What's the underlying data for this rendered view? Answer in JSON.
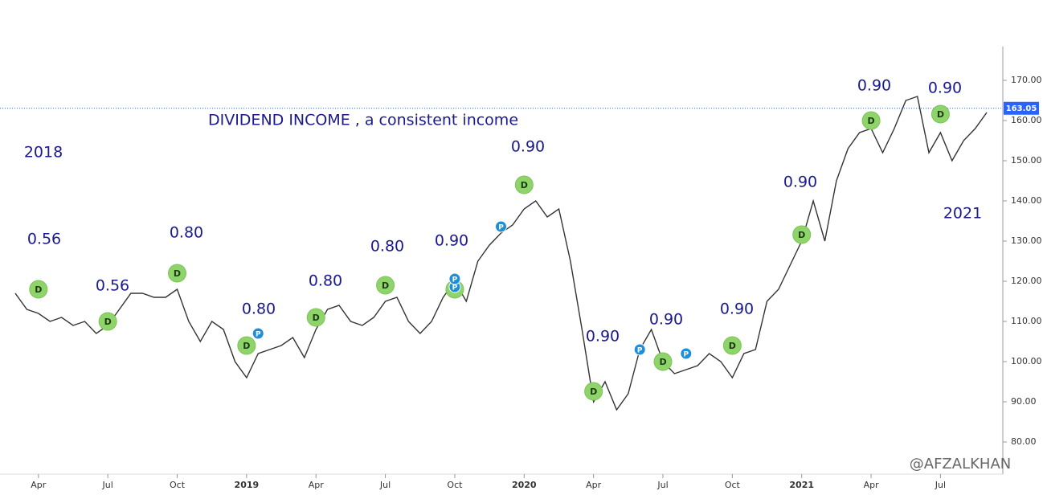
{
  "chart_data": {
    "type": "line",
    "categories": [
      null,
      null,
      "Apr",
      null,
      null,
      null,
      null,
      null,
      "Jul",
      null,
      null,
      null,
      null,
      null,
      "Oct",
      null,
      null,
      null,
      null,
      null,
      "2019",
      null,
      null,
      null,
      null,
      null,
      "Apr",
      null,
      null,
      null,
      null,
      null,
      "Jul",
      null,
      null,
      null,
      null,
      null,
      "Oct",
      null,
      null,
      null,
      null,
      null,
      "2020",
      null,
      null,
      null,
      null,
      null,
      "Apr",
      null,
      null,
      null,
      null,
      null,
      "Jul",
      null,
      null,
      null,
      null,
      null,
      "Oct",
      null,
      null,
      null,
      null,
      null,
      "2021",
      null,
      null,
      null,
      null,
      null,
      "Apr",
      null,
      null,
      null,
      null,
      null,
      "Jul",
      null,
      null,
      null,
      null
    ],
    "series": [
      {
        "color": "#333333",
        "values": [
          117,
          113,
          112,
          110,
          111,
          109,
          110,
          107,
          109,
          113,
          117,
          117,
          116,
          116,
          118,
          110,
          105,
          110,
          108,
          100,
          96,
          102,
          103,
          104,
          106,
          101,
          108,
          113,
          114,
          110,
          109,
          111,
          115,
          116,
          110,
          107,
          110,
          116,
          120,
          115,
          125,
          129,
          132,
          134,
          138,
          140,
          136,
          138,
          125,
          108,
          90,
          95,
          88,
          92,
          103,
          108,
          100,
          97,
          98,
          99,
          102,
          100,
          96,
          102,
          103,
          115,
          118,
          124,
          130,
          140,
          130,
          145,
          153,
          157,
          158,
          152,
          158,
          165,
          166,
          152,
          157,
          150,
          155,
          158,
          162
        ]
      }
    ],
    "ylim": [
      72,
      178.4
    ],
    "yticks": [
      {
        "value": 80,
        "label": "80.00"
      },
      {
        "value": 90,
        "label": "90.00"
      },
      {
        "value": 100,
        "label": "100.00"
      },
      {
        "value": 110,
        "label": "110.00"
      },
      {
        "value": 120,
        "label": "120.00"
      },
      {
        "value": 130,
        "label": "130.00"
      },
      {
        "value": 140,
        "label": "140.00"
      },
      {
        "value": 150,
        "label": "150.00"
      },
      {
        "value": 160,
        "label": "160.00"
      },
      {
        "value": 170,
        "label": "170.00"
      }
    ],
    "last_value": 163.05,
    "markers": [
      {
        "label": "D",
        "index": 2,
        "value": 118
      },
      {
        "label": "D",
        "index": 8,
        "value": 110
      },
      {
        "label": "D",
        "index": 14,
        "value": 122
      },
      {
        "label": "D",
        "index": 20,
        "value": 104
      },
      {
        "label": "P",
        "index": 21,
        "value": 107
      },
      {
        "label": "D",
        "index": 26,
        "value": 111
      },
      {
        "label": "D",
        "index": 32,
        "value": 119
      },
      {
        "label": "D",
        "index": 38,
        "value": 118
      },
      {
        "label": "P",
        "index": 38,
        "value": 118.6
      },
      {
        "label": "P",
        "index": 38,
        "value": 120.6
      },
      {
        "label": "P",
        "index": 42,
        "value": 133.6
      },
      {
        "label": "D",
        "index": 44,
        "value": 144
      },
      {
        "label": "D",
        "index": 50,
        "value": 92.6
      },
      {
        "label": "P",
        "index": 54,
        "value": 103
      },
      {
        "label": "D",
        "index": 56,
        "value": 100
      },
      {
        "label": "P",
        "index": 58,
        "value": 102
      },
      {
        "label": "D",
        "index": 62,
        "value": 104
      },
      {
        "label": "D",
        "index": 68,
        "value": 131.6
      },
      {
        "label": "D",
        "index": 74,
        "value": 160
      },
      {
        "label": "D",
        "index": 80,
        "value": 161.6
      }
    ],
    "annotations": [
      "DIVIDEND INCOME , a consistent income",
      "2018",
      "2021",
      "0.56",
      "0.56",
      "0.80",
      "0.80",
      "0.80",
      "0.80",
      "0.90",
      "0.90",
      "0.90",
      "0.90",
      "0.90",
      "0.90",
      "0.90",
      "0.90"
    ],
    "watermark": "@AFZALKHAN"
  }
}
